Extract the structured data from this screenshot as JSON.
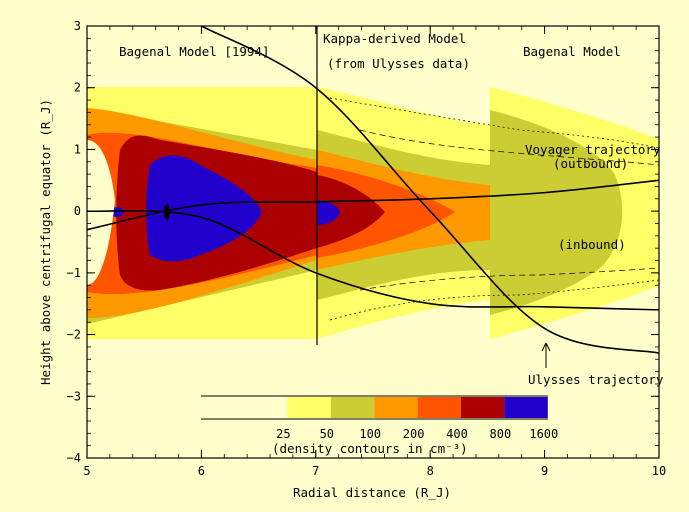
{
  "chart_data": {
    "type": "contour",
    "xlabel": "Radial distance (R_J)",
    "ylabel": "Height above centrifugal equator (R_J)",
    "xlim": [
      5,
      10
    ],
    "ylim": [
      -4,
      3
    ],
    "x_ticks": [
      "5",
      "6",
      "7",
      "8",
      "9",
      "10"
    ],
    "y_ticks": [
      "−4",
      "−3",
      "−2",
      "−1",
      "0",
      "1",
      "2",
      "3"
    ],
    "region_labels": [
      "Bagenal Model [1994]",
      "Kappa-derived Model",
      "(from Ulysses data)",
      "Bagenal Model"
    ],
    "region_boundaries_x": [
      7.0,
      8.5
    ],
    "trajectory_labels": {
      "voyager": "Voyager trajectory",
      "outbound": "(outbound)",
      "inbound": "(inbound)",
      "ulysses": "Ulysses trajectory"
    },
    "colorbar": {
      "levels": [
        "25",
        "50",
        "100",
        "200",
        "400",
        "800",
        "1600"
      ],
      "caption": "(density contours in cm⁻³)",
      "colors": [
        "#ffffcc",
        "#ffff66",
        "#cccc33",
        "#ff9900",
        "#ff5500",
        "#aa0000",
        "#2200cc"
      ]
    },
    "series": [
      {
        "name": "Voyager trajectory (outbound)",
        "x": [
          5.0,
          6.0,
          7.0,
          8.0,
          9.0,
          10.0
        ],
        "y": [
          -0.3,
          0.1,
          0.15,
          0.2,
          0.3,
          0.5
        ]
      },
      {
        "name": "Voyager trajectory (inbound)",
        "x": [
          5.0,
          6.0,
          7.0,
          8.0,
          9.0,
          10.0
        ],
        "y": [
          0.0,
          -0.1,
          -1.0,
          -1.5,
          -1.55,
          -1.6
        ]
      },
      {
        "name": "Ulysses trajectory",
        "x": [
          6.0,
          7.0,
          8.0,
          9.0,
          10.0
        ],
        "y": [
          3.0,
          2.0,
          0.0,
          -1.9,
          -2.3
        ]
      }
    ]
  }
}
